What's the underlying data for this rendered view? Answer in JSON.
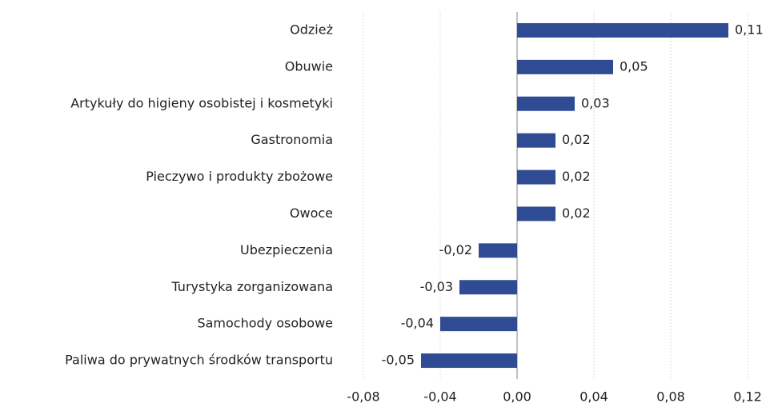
{
  "chart_data": {
    "type": "hbar",
    "categories": [
      "Odzież",
      "Obuwie",
      "Artykuły do higieny osobistej i kosmetyki",
      "Gastronomia",
      "Pieczywo i produkty zbożowe",
      "Owoce",
      "Ubezpieczenia",
      "Turystyka zorganizowana",
      "Samochody osobowe",
      "Paliwa do prywatnych środków transportu"
    ],
    "values": [
      0.11,
      0.05,
      0.03,
      0.02,
      0.02,
      0.02,
      -0.02,
      -0.03,
      -0.04,
      -0.05
    ],
    "value_labels": [
      "0,11",
      "0,05",
      "0,03",
      "0,02",
      "0,02",
      "0,02",
      "-0,02",
      "-0,03",
      "-0,04",
      "-0,05"
    ],
    "color": "#2f4b94",
    "xlim": [
      -0.08,
      0.12
    ],
    "xticks": [
      {
        "value": -0.08,
        "label": "-0,08"
      },
      {
        "value": -0.04,
        "label": "-0,04"
      },
      {
        "value": 0,
        "label": "0,00"
      },
      {
        "value": 0.04,
        "label": "0,04"
      },
      {
        "value": 0.08,
        "label": "0,08"
      },
      {
        "value": 0.12,
        "label": "0,12"
      }
    ],
    "grid": true
  }
}
